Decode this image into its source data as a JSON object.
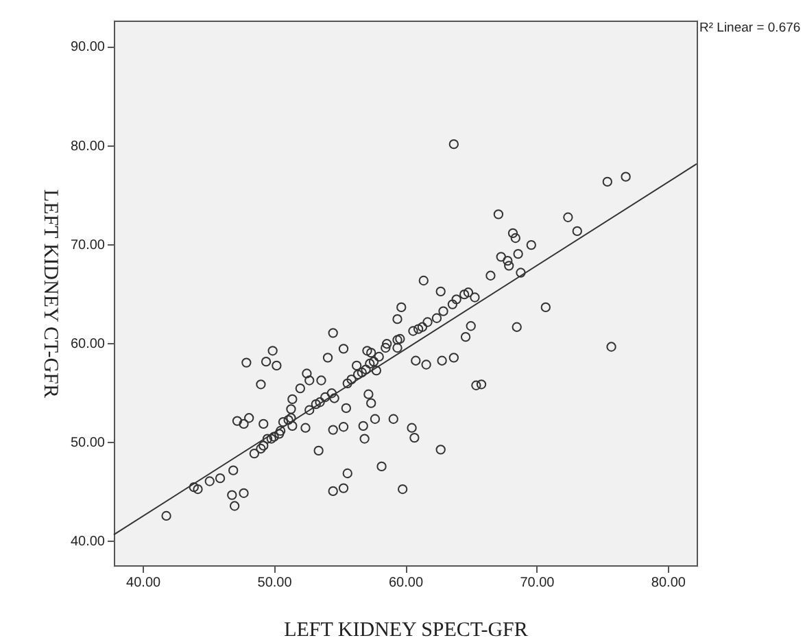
{
  "chart_data": {
    "type": "scatter",
    "xlabel": "LEFT KIDNEY SPECT-GFR",
    "ylabel": "LEFT KIDNEY CT-GFR",
    "annotations": [
      "R² Linear = 0.676"
    ],
    "xlim": [
      37.8,
      82.2
    ],
    "ylim": [
      37.5,
      92.6
    ],
    "xticks": [
      {
        "value": 40,
        "label": "40.00"
      },
      {
        "value": 50,
        "label": "50.00"
      },
      {
        "value": 60,
        "label": "60.00"
      },
      {
        "value": 70,
        "label": "70.00"
      },
      {
        "value": 80,
        "label": "80.00"
      }
    ],
    "yticks": [
      {
        "value": 40,
        "label": "40.00"
      },
      {
        "value": 50,
        "label": "50.00"
      },
      {
        "value": 60,
        "label": "60.00"
      },
      {
        "value": 70,
        "label": "70.00"
      },
      {
        "value": 80,
        "label": "80.00"
      },
      {
        "value": 90,
        "label": "90.00"
      }
    ],
    "grid": false,
    "series": [
      {
        "marker": "circle",
        "color": "#333333",
        "x": [
          43.9,
          44.2,
          45.1,
          45.9,
          46.9,
          46.8,
          47.7,
          47.0,
          48.5,
          49.0,
          49.2,
          49.5,
          49.8,
          50.0,
          50.4,
          50.5,
          50.7,
          51.1,
          51.3,
          51.4,
          47.2,
          47.7,
          48.1,
          49.2,
          49.0,
          47.9,
          49.4,
          49.9,
          50.2,
          51.3,
          51.4,
          52.0,
          52.5,
          52.7,
          53.6,
          52.4,
          52.7,
          53.2,
          53.5,
          53.9,
          53.4,
          54.1,
          54.5,
          55.3,
          54.4,
          54.6,
          55.5,
          54.5,
          55.3,
          55.6,
          54.5,
          55.3,
          58.2,
          56.8,
          56.9,
          57.7,
          59.1,
          57.2,
          57.4,
          59.8,
          55.6,
          55.9,
          56.4,
          56.7,
          57.0,
          57.3,
          57.6,
          57.8,
          57.1,
          58.0,
          58.5,
          59.4,
          59.6,
          61.4,
          62.7,
          63.9,
          64.5,
          64.8,
          65.3,
          66.5,
          59.7,
          59.4,
          60.6,
          61.0,
          61.3,
          61.7,
          62.4,
          62.9,
          63.6,
          65.0,
          64.6,
          60.8,
          61.6,
          62.8,
          63.7,
          65.4,
          65.8,
          59.4,
          60.5,
          60.7,
          62.7,
          63.7,
          75.4,
          76.8,
          67.1,
          72.4,
          73.1,
          68.2,
          68.4,
          69.6,
          67.3,
          67.8,
          67.9,
          68.6,
          68.8,
          70.7,
          68.5,
          75.7,
          41.8,
          56.3,
          57.4,
          58.6
        ],
        "values": [
          45.4,
          45.2,
          46.0,
          46.3,
          47.1,
          44.6,
          44.8,
          43.5,
          48.8,
          49.3,
          49.6,
          50.3,
          50.3,
          50.5,
          50.8,
          51.1,
          52.0,
          52.2,
          52.4,
          51.6,
          52.1,
          51.8,
          52.4,
          51.8,
          55.8,
          58.0,
          58.1,
          59.2,
          57.7,
          53.3,
          54.3,
          55.4,
          56.9,
          56.2,
          56.2,
          51.4,
          53.2,
          53.8,
          54.0,
          54.5,
          49.1,
          58.5,
          61.0,
          59.4,
          54.9,
          54.4,
          53.4,
          51.2,
          51.5,
          46.8,
          45.0,
          45.3,
          47.5,
          51.6,
          50.3,
          52.3,
          52.3,
          54.8,
          53.9,
          45.2,
          55.9,
          56.3,
          56.8,
          57.0,
          57.3,
          57.9,
          58.1,
          57.2,
          59.2,
          58.6,
          59.5,
          59.5,
          60.4,
          66.3,
          65.2,
          64.4,
          64.9,
          65.1,
          64.6,
          66.8,
          63.6,
          62.4,
          61.2,
          61.4,
          61.6,
          62.1,
          62.5,
          63.2,
          63.9,
          61.7,
          60.6,
          58.2,
          57.8,
          58.2,
          58.5,
          55.7,
          55.8,
          60.3,
          51.4,
          50.4,
          49.2,
          80.1,
          76.3,
          76.8,
          73.0,
          72.7,
          71.3,
          71.1,
          70.6,
          69.9,
          68.7,
          68.3,
          67.8,
          69.0,
          67.1,
          63.6,
          61.6,
          59.6,
          42.5,
          57.7,
          59.0,
          59.9
        ]
      },
      {
        "type": "line",
        "marker": "none",
        "color": "#333333",
        "x": [
          37.8,
          82.2
        ],
        "values": [
          40.6,
          78.1
        ]
      }
    ]
  }
}
